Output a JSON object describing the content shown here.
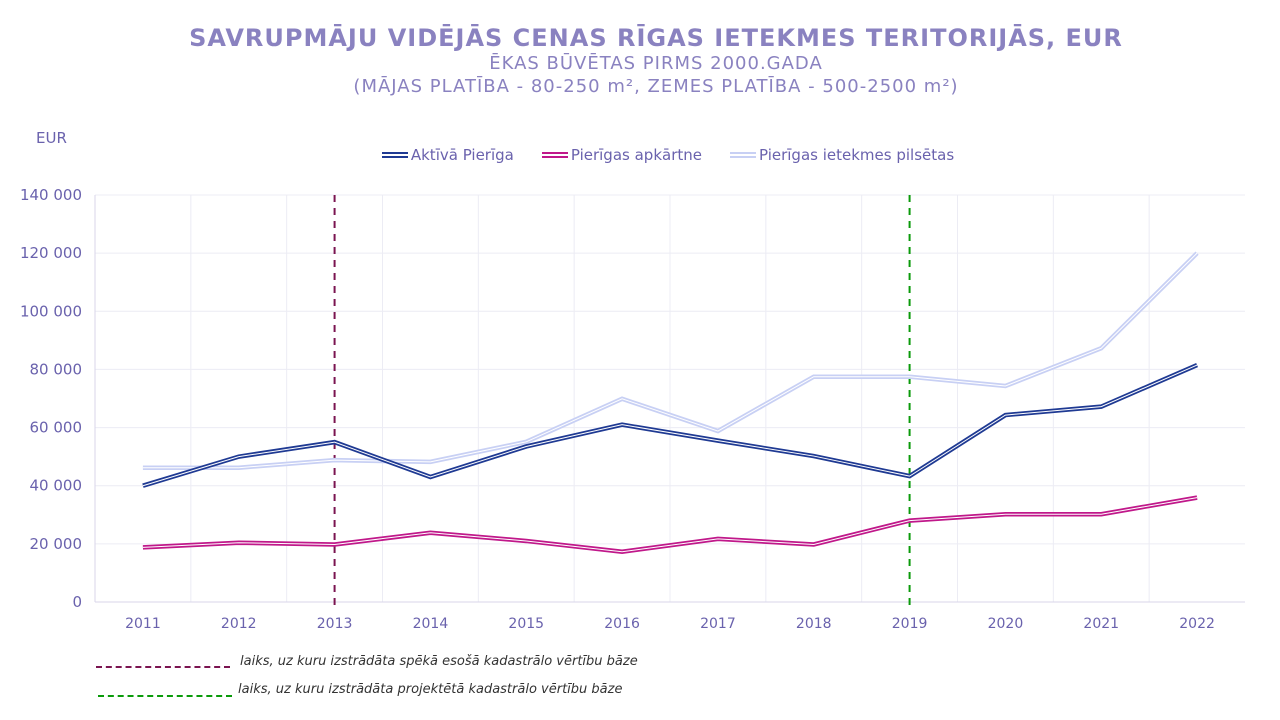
{
  "chart_data": {
    "type": "line",
    "title": "SAVRUPMĀJU VIDĒJĀS CENAS RĪGAS IETEKMES TERITORIJĀS, EUR",
    "subtitle_lines": [
      "ĒKAS BŪVĒTAS PIRMS 2000.GADA",
      "(MĀJAS PLATĪBA - 80-250 m², ZEMES PLATĪBA - 500-2500 m²)"
    ],
    "ylabel": "EUR",
    "xlabel": "",
    "ylim": [
      0,
      140000
    ],
    "yticks": [
      0,
      20000,
      40000,
      60000,
      80000,
      100000,
      120000,
      140000
    ],
    "ytick_labels": [
      "0",
      "20 000",
      "40 000",
      "60 000",
      "80 000",
      "100 000",
      "120 000",
      "140 000"
    ],
    "grid": true,
    "legend_position": "top-center",
    "categories": [
      "2011",
      "2012",
      "2013",
      "2014",
      "2015",
      "2016",
      "2017",
      "2018",
      "2019",
      "2020",
      "2021",
      "2022"
    ],
    "series": [
      {
        "name": "Aktīvā Pierīga",
        "color": "#1f3a93",
        "values": [
          40000,
          50000,
          55000,
          43000,
          53500,
          61000,
          55500,
          50200,
          43300,
          64300,
          67200,
          81500
        ]
      },
      {
        "name": "Pierīgas apkārtne",
        "color": "#c0188a",
        "values": [
          18800,
          20400,
          19800,
          23800,
          21000,
          17300,
          21700,
          19800,
          28000,
          30200,
          30200,
          35900
        ]
      },
      {
        "name": "Pierīgas ietekmes pilsētas",
        "color": "#c8d0f4",
        "values": [
          46200,
          46200,
          48800,
          48200,
          55100,
          69900,
          58800,
          77500,
          77500,
          74300,
          87300,
          120000
        ]
      }
    ],
    "reference_lines": [
      {
        "x": "2013",
        "color": "#7a1450",
        "style": "dashed",
        "label": "laiks, uz kuru izstrādāta spēkā esošā kadastrālo vērtību bāze"
      },
      {
        "x": "2019",
        "color": "#0a9a0a",
        "style": "dashed",
        "label": "laiks, uz kuru izstrādāta projektētā kadastrālo vērtību bāze"
      }
    ]
  }
}
